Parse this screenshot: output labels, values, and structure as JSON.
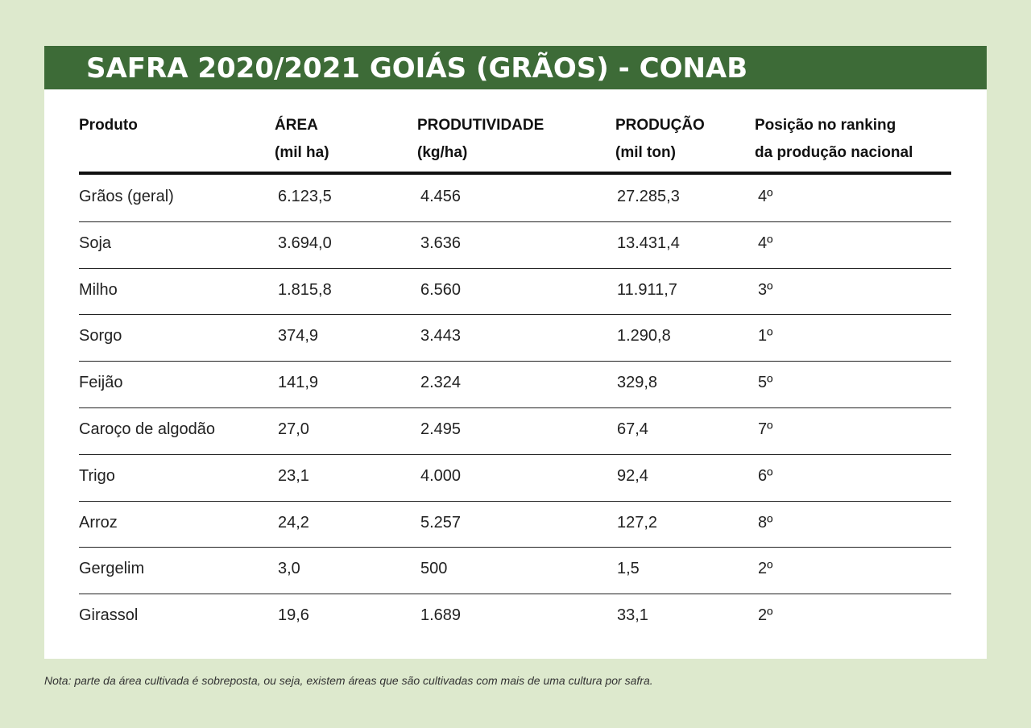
{
  "title": "SAFRA 2020/2021 GOIÁS (GRÃOS) - CONAB",
  "columns": [
    {
      "line1": "Produto",
      "line2": ""
    },
    {
      "line1": "ÁREA",
      "line2": "(mil ha)"
    },
    {
      "line1": "PRODUTIVIDADE",
      "line2": "(kg/ha)"
    },
    {
      "line1": "PRODUÇÃO",
      "line2": "(mil ton)"
    },
    {
      "line1": "Posição no ranking",
      "line2": "da produção nacional"
    }
  ],
  "rows": [
    {
      "produto": "Grãos (geral)",
      "area": "6.123,5",
      "produtividade": "4.456",
      "producao": "27.285,3",
      "ranking": "4º"
    },
    {
      "produto": "Soja",
      "area": "3.694,0",
      "produtividade": "3.636",
      "producao": "13.431,4",
      "ranking": "4º"
    },
    {
      "produto": "Milho",
      "area": "1.815,8",
      "produtividade": "6.560",
      "producao": "11.911,7",
      "ranking": "3º"
    },
    {
      "produto": "Sorgo",
      "area": "374,9",
      "produtividade": "3.443",
      "producao": "1.290,8",
      "ranking": "1º"
    },
    {
      "produto": "Feijão",
      "area": "141,9",
      "produtividade": "2.324",
      "producao": "329,8",
      "ranking": "5º"
    },
    {
      "produto": "Caroço de algodão",
      "area": "27,0",
      "produtividade": "2.495",
      "producao": "67,4",
      "ranking": "7º"
    },
    {
      "produto": "Trigo",
      "area": "23,1",
      "produtividade": "4.000",
      "producao": "92,4",
      "ranking": "6º"
    },
    {
      "produto": "Arroz",
      "area": "24,2",
      "produtividade": "5.257",
      "producao": "127,2",
      "ranking": "8º"
    },
    {
      "produto": "Gergelim",
      "area": "3,0",
      "produtividade": "500",
      "producao": "1,5",
      "ranking": "2º"
    },
    {
      "produto": "Girassol",
      "area": "19,6",
      "produtividade": "1.689",
      "producao": "33,1",
      "ranking": "2º"
    }
  ],
  "note": "Nota: parte da área cultivada é sobreposta, ou seja, existem áreas que são cultivadas com mais de uma cultura por safra."
}
